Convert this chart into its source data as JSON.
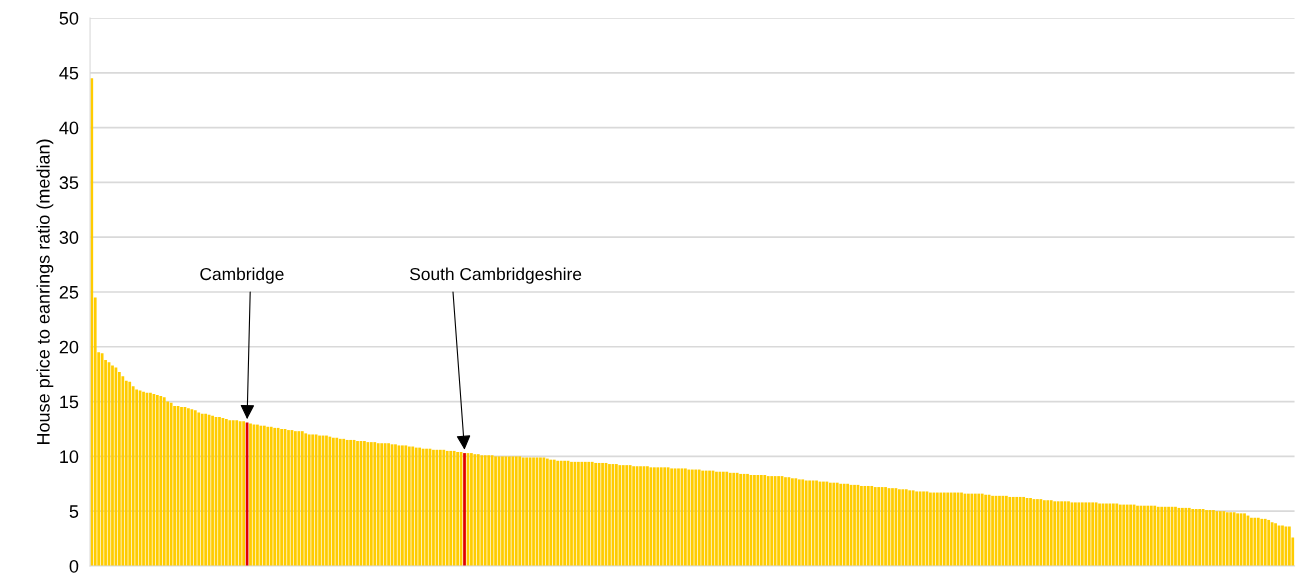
{
  "chart_data": {
    "type": "bar",
    "ylabel": "House price to eanrings ratio (median)",
    "categories": [
      null,
      null,
      null,
      null,
      null,
      null,
      null,
      null,
      null,
      null,
      null,
      null,
      null,
      null,
      null,
      null,
      null,
      null,
      null,
      null,
      null,
      null,
      null,
      null,
      null,
      null,
      null,
      null,
      null,
      null,
      null,
      null,
      null,
      null,
      null,
      null,
      null,
      null,
      null,
      null,
      null,
      null,
      null,
      null,
      null,
      null,
      null,
      null,
      null,
      null,
      null,
      null,
      null,
      null,
      null,
      null,
      null,
      null,
      null,
      null,
      null,
      null,
      null,
      null,
      null,
      null,
      null,
      null,
      null,
      null,
      null,
      null,
      null,
      null,
      null,
      null,
      null,
      null,
      null,
      null,
      null,
      null,
      null,
      null,
      null,
      null,
      null,
      null,
      null,
      null,
      null,
      null,
      null,
      null,
      null,
      null,
      null,
      null,
      null,
      null,
      null,
      null,
      null,
      null,
      null,
      null,
      null,
      null,
      null,
      null,
      null,
      null,
      null,
      null,
      null,
      null,
      null,
      null,
      null,
      null,
      null,
      null,
      null,
      null,
      null,
      null,
      null,
      null,
      null,
      null,
      null,
      null,
      null,
      null,
      null,
      null,
      null,
      null,
      null,
      null,
      null,
      null,
      null,
      null,
      null,
      null,
      null,
      null,
      null,
      null,
      null,
      null,
      null,
      null,
      null,
      null,
      null,
      null,
      null,
      null,
      null,
      null,
      null,
      null,
      null,
      null,
      null,
      null,
      null,
      null,
      null,
      null,
      null,
      null,
      null,
      null,
      null,
      null,
      null,
      null,
      null,
      null,
      null,
      null,
      null,
      null,
      null,
      null,
      null,
      null,
      null,
      null,
      null,
      null,
      null,
      null,
      null,
      null,
      null,
      null,
      null,
      null,
      null,
      null,
      null,
      null,
      null,
      null,
      null,
      null,
      null,
      null,
      null,
      null,
      null,
      null,
      null,
      null,
      null,
      null,
      null,
      null,
      null,
      null,
      null,
      null,
      null,
      null,
      null,
      null,
      null,
      null,
      null,
      null,
      null,
      null,
      null,
      null,
      null,
      null,
      null,
      null,
      null,
      null,
      null,
      null,
      null,
      null,
      null,
      null,
      null,
      null,
      null,
      null,
      null,
      null,
      null,
      null,
      null,
      null,
      null,
      null,
      null,
      null,
      null,
      null,
      null,
      null,
      null,
      null,
      null,
      null,
      null,
      null,
      null,
      null,
      null,
      null,
      null,
      null,
      null,
      null,
      null,
      null,
      null,
      null,
      null,
      null,
      null,
      null,
      null,
      null,
      null,
      null,
      null,
      null,
      null,
      null,
      null,
      null,
      null,
      null,
      null,
      null,
      null,
      null,
      null,
      null,
      null,
      null,
      null,
      null,
      null,
      null,
      null,
      null,
      null,
      null,
      null,
      null,
      null,
      null,
      null,
      null,
      null,
      null,
      null,
      null,
      null,
      null,
      null,
      null,
      null,
      null,
      null,
      null,
      null,
      null,
      null,
      null,
      null,
      null,
      null,
      null,
      null,
      null,
      null,
      null,
      null
    ],
    "values": [
      44.5,
      24.5,
      19.5,
      19.4,
      18.8,
      18.6,
      18.3,
      18.1,
      17.7,
      17.3,
      16.9,
      16.8,
      16.4,
      16.1,
      16.0,
      15.9,
      15.8,
      15.8,
      15.7,
      15.6,
      15.5,
      15.4,
      15.0,
      14.9,
      14.6,
      14.6,
      14.5,
      14.5,
      14.4,
      14.3,
      14.2,
      14.0,
      13.9,
      13.9,
      13.8,
      13.7,
      13.6,
      13.6,
      13.5,
      13.4,
      13.3,
      13.3,
      13.3,
      13.2,
      13.2,
      13.1,
      13.0,
      12.9,
      12.9,
      12.8,
      12.8,
      12.7,
      12.7,
      12.6,
      12.6,
      12.5,
      12.5,
      12.4,
      12.4,
      12.3,
      12.3,
      12.3,
      12.1,
      12.0,
      12.0,
      12.0,
      11.9,
      11.9,
      11.9,
      11.8,
      11.7,
      11.7,
      11.6,
      11.6,
      11.5,
      11.5,
      11.5,
      11.4,
      11.4,
      11.4,
      11.3,
      11.3,
      11.3,
      11.2,
      11.2,
      11.2,
      11.2,
      11.1,
      11.1,
      11.0,
      11.0,
      11.0,
      10.9,
      10.9,
      10.8,
      10.8,
      10.7,
      10.7,
      10.7,
      10.6,
      10.6,
      10.6,
      10.6,
      10.5,
      10.5,
      10.5,
      10.4,
      10.4,
      10.3,
      10.3,
      10.3,
      10.2,
      10.2,
      10.1,
      10.1,
      10.1,
      10.1,
      10.0,
      10.0,
      10.0,
      10.0,
      10.0,
      10.0,
      10.0,
      10.0,
      9.9,
      9.9,
      9.9,
      9.9,
      9.9,
      9.9,
      9.9,
      9.8,
      9.7,
      9.7,
      9.6,
      9.6,
      9.6,
      9.6,
      9.5,
      9.5,
      9.5,
      9.5,
      9.5,
      9.5,
      9.5,
      9.4,
      9.4,
      9.4,
      9.4,
      9.3,
      9.3,
      9.3,
      9.2,
      9.2,
      9.2,
      9.2,
      9.1,
      9.1,
      9.1,
      9.1,
      9.1,
      9.0,
      9.0,
      9.0,
      9.0,
      9.0,
      9.0,
      8.9,
      8.9,
      8.9,
      8.9,
      8.9,
      8.8,
      8.8,
      8.8,
      8.8,
      8.7,
      8.7,
      8.7,
      8.7,
      8.6,
      8.6,
      8.6,
      8.6,
      8.5,
      8.5,
      8.5,
      8.4,
      8.4,
      8.4,
      8.3,
      8.3,
      8.3,
      8.3,
      8.3,
      8.2,
      8.2,
      8.2,
      8.2,
      8.2,
      8.1,
      8.1,
      8.0,
      8.0,
      7.9,
      7.9,
      7.8,
      7.8,
      7.8,
      7.8,
      7.7,
      7.7,
      7.7,
      7.6,
      7.6,
      7.6,
      7.5,
      7.5,
      7.5,
      7.4,
      7.4,
      7.4,
      7.3,
      7.3,
      7.3,
      7.3,
      7.2,
      7.2,
      7.2,
      7.2,
      7.1,
      7.1,
      7.1,
      7.0,
      7.0,
      7.0,
      6.9,
      6.9,
      6.8,
      6.8,
      6.8,
      6.8,
      6.7,
      6.7,
      6.7,
      6.7,
      6.7,
      6.7,
      6.7,
      6.7,
      6.7,
      6.7,
      6.6,
      6.6,
      6.6,
      6.6,
      6.6,
      6.6,
      6.5,
      6.5,
      6.4,
      6.4,
      6.4,
      6.4,
      6.4,
      6.3,
      6.3,
      6.3,
      6.3,
      6.3,
      6.2,
      6.2,
      6.1,
      6.1,
      6.1,
      6.0,
      6.0,
      6.0,
      5.9,
      5.9,
      5.9,
      5.9,
      5.9,
      5.8,
      5.8,
      5.8,
      5.8,
      5.8,
      5.8,
      5.8,
      5.8,
      5.7,
      5.7,
      5.7,
      5.7,
      5.7,
      5.7,
      5.6,
      5.6,
      5.6,
      5.6,
      5.6,
      5.5,
      5.5,
      5.5,
      5.5,
      5.5,
      5.5,
      5.4,
      5.4,
      5.4,
      5.4,
      5.4,
      5.4,
      5.3,
      5.3,
      5.3,
      5.3,
      5.2,
      5.2,
      5.2,
      5.2,
      5.1,
      5.1,
      5.1,
      5.0,
      5.0,
      5.0,
      4.9,
      4.9,
      4.9,
      4.8,
      4.8,
      4.8,
      4.6,
      4.4,
      4.4,
      4.4,
      4.3,
      4.3,
      4.2,
      4.0,
      3.9,
      3.7,
      3.7,
      3.6,
      3.6,
      2.6
    ],
    "colors": [
      "#ffcc00",
      "#ffcc00",
      "#ffcc00",
      "#ffcc00",
      "#ffcc00",
      "#ffcc00",
      "#ffcc00",
      "#ffcc00",
      "#ffcc00",
      "#ffcc00",
      "#ffcc00",
      "#ffcc00",
      "#ffcc00",
      "#ffcc00",
      "#ffcc00",
      "#ffcc00",
      "#ffcc00",
      "#ffcc00",
      "#ffcc00",
      "#ffcc00",
      "#ffcc00",
      "#ffcc00",
      "#ffcc00",
      "#ffcc00",
      "#ffcc00",
      "#ffcc00",
      "#ffcc00",
      "#ffcc00",
      "#ffcc00",
      "#ffcc00",
      "#ffcc00",
      "#ffcc00",
      "#ffcc00",
      "#ffcc00",
      "#ffcc00",
      "#ffcc00",
      "#ffcc00",
      "#ffcc00",
      "#ffcc00",
      "#ffcc00",
      "#ffcc00",
      "#ffcc00",
      "#ffcc00",
      "#ffcc00",
      "#ffcc00",
      "#e00000",
      "#ffcc00",
      "#ffcc00",
      "#ffcc00",
      "#ffcc00",
      "#ffcc00",
      "#ffcc00",
      "#ffcc00",
      "#ffcc00",
      "#ffcc00",
      "#ffcc00",
      "#ffcc00",
      "#ffcc00",
      "#ffcc00",
      "#ffcc00",
      "#ffcc00",
      "#ffcc00",
      "#ffcc00",
      "#ffcc00",
      "#ffcc00",
      "#ffcc00",
      "#ffcc00",
      "#ffcc00",
      "#ffcc00",
      "#ffcc00",
      "#ffcc00",
      "#ffcc00",
      "#ffcc00",
      "#ffcc00",
      "#ffcc00",
      "#ffcc00",
      "#ffcc00",
      "#ffcc00",
      "#ffcc00",
      "#ffcc00",
      "#ffcc00",
      "#ffcc00",
      "#ffcc00",
      "#ffcc00",
      "#ffcc00",
      "#ffcc00",
      "#ffcc00",
      "#ffcc00",
      "#ffcc00",
      "#ffcc00",
      "#ffcc00",
      "#ffcc00",
      "#ffcc00",
      "#ffcc00",
      "#ffcc00",
      "#ffcc00",
      "#ffcc00",
      "#ffcc00",
      "#ffcc00",
      "#ffcc00",
      "#ffcc00",
      "#ffcc00",
      "#ffcc00",
      "#ffcc00",
      "#ffcc00",
      "#ffcc00",
      "#ffcc00",
      "#ffcc00",
      "#e00000",
      "#ffcc00",
      "#ffcc00",
      "#ffcc00",
      "#ffcc00",
      "#ffcc00",
      "#ffcc00",
      "#ffcc00",
      "#ffcc00",
      "#ffcc00",
      "#ffcc00",
      "#ffcc00",
      "#ffcc00",
      "#ffcc00",
      "#ffcc00",
      "#ffcc00",
      "#ffcc00",
      "#ffcc00",
      "#ffcc00",
      "#ffcc00",
      "#ffcc00",
      "#ffcc00",
      "#ffcc00",
      "#ffcc00",
      "#ffcc00",
      "#ffcc00",
      "#ffcc00",
      "#ffcc00",
      "#ffcc00",
      "#ffcc00",
      "#ffcc00",
      "#ffcc00",
      "#ffcc00",
      "#ffcc00",
      "#ffcc00",
      "#ffcc00",
      "#ffcc00",
      "#ffcc00",
      "#ffcc00",
      "#ffcc00",
      "#ffcc00",
      "#ffcc00",
      "#ffcc00",
      "#ffcc00",
      "#ffcc00",
      "#ffcc00",
      "#ffcc00",
      "#ffcc00",
      "#ffcc00",
      "#ffcc00",
      "#ffcc00",
      "#ffcc00",
      "#ffcc00",
      "#ffcc00",
      "#ffcc00",
      "#ffcc00",
      "#ffcc00",
      "#ffcc00",
      "#ffcc00",
      "#ffcc00",
      "#ffcc00",
      "#ffcc00",
      "#ffcc00",
      "#ffcc00",
      "#ffcc00",
      "#ffcc00",
      "#ffcc00",
      "#ffcc00",
      "#ffcc00",
      "#ffcc00",
      "#ffcc00",
      "#ffcc00",
      "#ffcc00",
      "#ffcc00",
      "#ffcc00",
      "#ffcc00",
      "#ffcc00",
      "#ffcc00",
      "#ffcc00",
      "#ffcc00",
      "#ffcc00",
      "#ffcc00",
      "#ffcc00",
      "#ffcc00",
      "#ffcc00",
      "#ffcc00",
      "#ffcc00",
      "#ffcc00",
      "#ffcc00",
      "#ffcc00",
      "#ffcc00",
      "#ffcc00",
      "#ffcc00",
      "#ffcc00",
      "#ffcc00",
      "#ffcc00",
      "#ffcc00",
      "#ffcc00",
      "#ffcc00",
      "#ffcc00",
      "#ffcc00",
      "#ffcc00",
      "#ffcc00",
      "#ffcc00",
      "#ffcc00",
      "#ffcc00",
      "#ffcc00",
      "#ffcc00",
      "#ffcc00",
      "#ffcc00",
      "#ffcc00",
      "#ffcc00",
      "#ffcc00",
      "#ffcc00",
      "#ffcc00",
      "#ffcc00",
      "#ffcc00",
      "#ffcc00",
      "#ffcc00",
      "#ffcc00",
      "#ffcc00",
      "#ffcc00",
      "#ffcc00",
      "#ffcc00",
      "#ffcc00",
      "#ffcc00",
      "#ffcc00",
      "#ffcc00",
      "#ffcc00",
      "#ffcc00",
      "#ffcc00",
      "#ffcc00",
      "#ffcc00",
      "#ffcc00",
      "#ffcc00",
      "#ffcc00",
      "#ffcc00",
      "#ffcc00",
      "#ffcc00",
      "#ffcc00",
      "#ffcc00",
      "#ffcc00",
      "#ffcc00",
      "#ffcc00",
      "#ffcc00",
      "#ffcc00",
      "#ffcc00",
      "#ffcc00",
      "#ffcc00",
      "#ffcc00",
      "#ffcc00",
      "#ffcc00",
      "#ffcc00",
      "#ffcc00",
      "#ffcc00",
      "#ffcc00",
      "#ffcc00",
      "#ffcc00",
      "#ffcc00",
      "#ffcc00",
      "#ffcc00",
      "#ffcc00",
      "#ffcc00",
      "#ffcc00",
      "#ffcc00",
      "#ffcc00",
      "#ffcc00",
      "#ffcc00",
      "#ffcc00",
      "#ffcc00",
      "#ffcc00",
      "#ffcc00",
      "#ffcc00",
      "#ffcc00",
      "#ffcc00",
      "#ffcc00",
      "#ffcc00",
      "#ffcc00",
      "#ffcc00",
      "#ffcc00",
      "#ffcc00",
      "#ffcc00",
      "#ffcc00",
      "#ffcc00",
      "#ffcc00",
      "#ffcc00",
      "#ffcc00",
      "#ffcc00",
      "#ffcc00",
      "#ffcc00",
      "#ffcc00",
      "#ffcc00",
      "#ffcc00",
      "#ffcc00",
      "#ffcc00",
      "#ffcc00",
      "#ffcc00",
      "#ffcc00",
      "#ffcc00",
      "#ffcc00",
      "#ffcc00",
      "#ffcc00",
      "#ffcc00",
      "#ffcc00",
      "#ffcc00",
      "#ffcc00",
      "#ffcc00",
      "#ffcc00",
      "#ffcc00",
      "#ffcc00",
      "#ffcc00",
      "#ffcc00",
      "#ffcc00",
      "#ffcc00",
      "#ffcc00",
      "#ffcc00",
      "#ffcc00",
      "#ffcc00",
      "#ffcc00",
      "#ffcc00",
      "#ffcc00",
      "#ffcc00",
      "#ffcc00",
      "#ffcc00",
      "#ffcc00",
      "#ffcc00",
      "#ffcc00",
      "#ffcc00",
      "#ffcc00",
      "#ffcc00",
      "#ffcc00",
      "#ffcc00",
      "#ffcc00",
      "#ffcc00",
      "#ffcc00",
      "#ffcc00",
      "#ffcc00",
      "#ffcc00",
      "#ffcc00",
      "#ffcc00",
      "#ffcc00"
    ],
    "annotations": [
      "Cambridge",
      "South Cambridgeshire"
    ],
    "ylim": [
      0,
      50
    ],
    "yticks": [
      0,
      5,
      10,
      15,
      20,
      25,
      30,
      35,
      40,
      45,
      50
    ],
    "grid": "y",
    "legend": false
  }
}
